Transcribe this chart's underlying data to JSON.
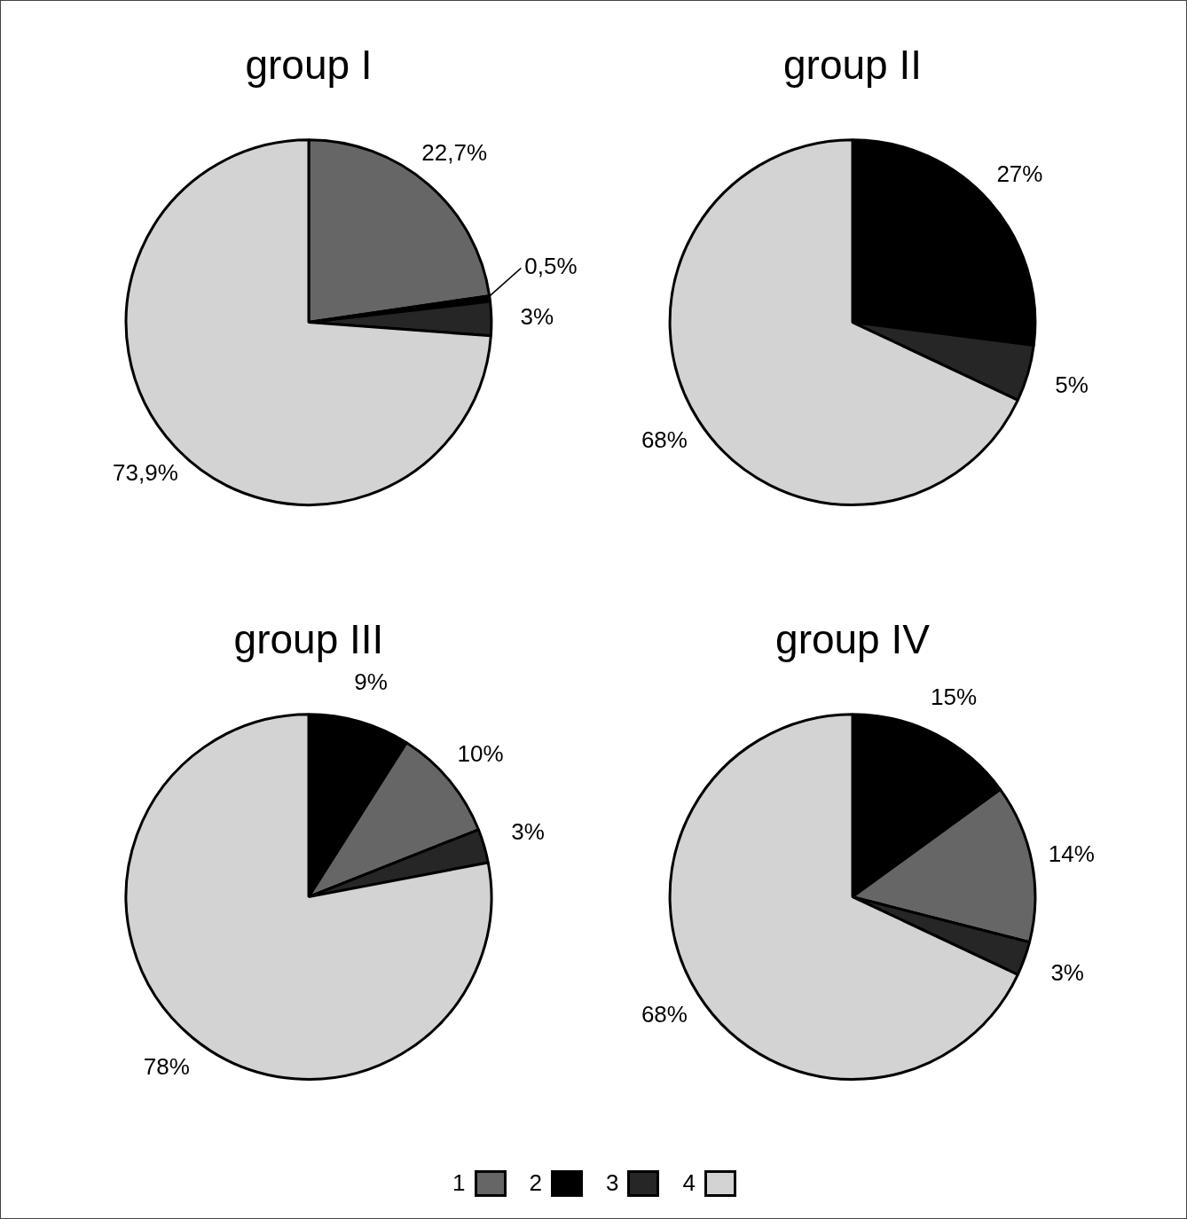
{
  "chart_data": [
    {
      "type": "pie",
      "title": "group I",
      "categories": [
        "1",
        "2",
        "3",
        "4"
      ],
      "values": [
        22.7,
        0.5,
        3,
        73.9
      ],
      "colors": [
        "#666666",
        "#000000",
        "#262626",
        "#d3d3d3"
      ],
      "value_labels": [
        "22,7%",
        "0,5%",
        "3%",
        "73,9%"
      ],
      "legend": "bottom"
    },
    {
      "type": "pie",
      "title": "group II",
      "categories": [
        null,
        null,
        null
      ],
      "values": [
        27,
        5,
        68
      ],
      "colors": [
        "#000000",
        "#262626",
        "#d3d3d3"
      ],
      "value_labels": [
        "27%",
        "5%",
        "68%"
      ]
    },
    {
      "type": "pie",
      "title": "group III",
      "categories": [
        null,
        null,
        null,
        null
      ],
      "values": [
        9,
        10,
        3,
        78
      ],
      "colors": [
        "#000000",
        "#666666",
        "#262626",
        "#d3d3d3"
      ],
      "value_labels": [
        "9%",
        "10%",
        "3%",
        "78%"
      ]
    },
    {
      "type": "pie",
      "title": "group IV",
      "categories": [
        null,
        null,
        null,
        null
      ],
      "values": [
        15,
        14,
        3,
        68
      ],
      "colors": [
        "#000000",
        "#666666",
        "#262626",
        "#d3d3d3"
      ],
      "value_labels": [
        "15%",
        "14%",
        "3%",
        "68%"
      ]
    }
  ]
}
